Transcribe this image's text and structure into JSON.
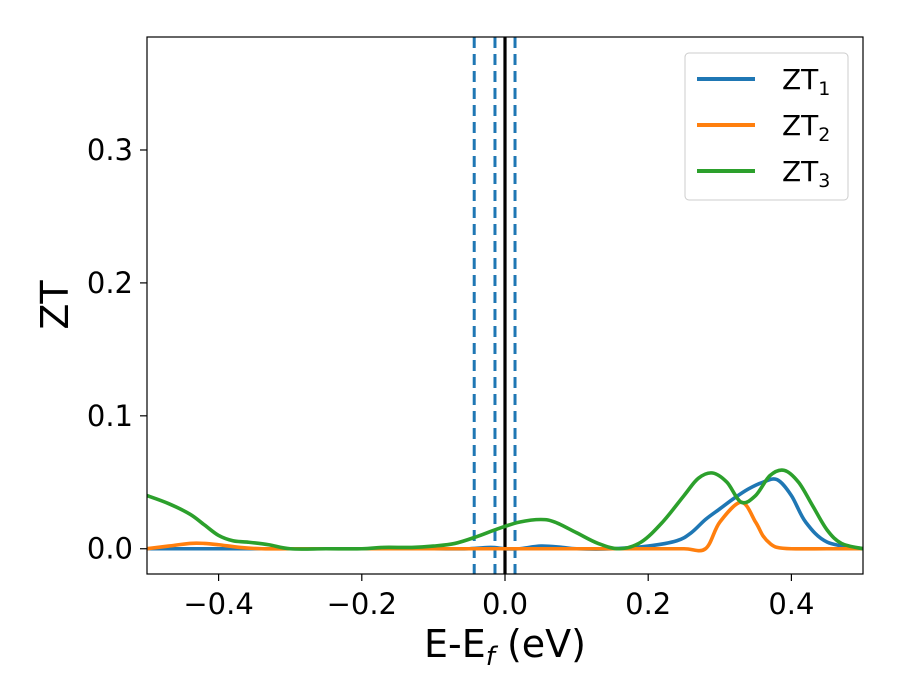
{
  "chart_data": {
    "type": "line",
    "xlabel": "E-E",
    "xlabel_sub": "f",
    "xlabel_unit": " (eV)",
    "ylabel": "ZT",
    "xlim": [
      -0.5,
      0.5
    ],
    "ylim": [
      -0.019,
      0.385
    ],
    "xticks": [
      -0.4,
      -0.2,
      0.0,
      0.2,
      0.4
    ],
    "xtick_labels": [
      "−0.4",
      "−0.2",
      "0.0",
      "0.2",
      "0.4"
    ],
    "yticks": [
      0.0,
      0.1,
      0.2,
      0.3
    ],
    "ytick_labels": [
      "0.0",
      "0.1",
      "0.2",
      "0.3"
    ],
    "grid": false,
    "legend_position": "top-right",
    "vlines": [
      {
        "x": -0.043,
        "style": "dashed",
        "color": "#1f77b4"
      },
      {
        "x": -0.014,
        "style": "dashed",
        "color": "#1f77b4"
      },
      {
        "x": 0.0,
        "style": "solid",
        "color": "#000000"
      },
      {
        "x": 0.014,
        "style": "dashed",
        "color": "#1f77b4"
      }
    ],
    "series": [
      {
        "name": "ZT",
        "name_sub": "1",
        "color": "#1f77b4",
        "x": [
          -0.5,
          -0.45,
          -0.4,
          -0.35,
          -0.3,
          -0.25,
          -0.2,
          -0.15,
          -0.1,
          -0.05,
          -0.02,
          0.0,
          0.02,
          0.05,
          0.08,
          0.1,
          0.15,
          0.2,
          0.24,
          0.26,
          0.28,
          0.3,
          0.32,
          0.34,
          0.36,
          0.38,
          0.4,
          0.42,
          0.45,
          0.5
        ],
        "y": [
          0.0,
          0.0,
          0.0,
          0.0,
          0.0,
          0.0,
          0.0,
          0.0,
          0.0,
          0.0,
          0.001,
          0.0,
          0.0,
          0.002,
          0.001,
          0.0,
          0.0,
          0.002,
          0.006,
          0.012,
          0.022,
          0.03,
          0.038,
          0.045,
          0.05,
          0.052,
          0.04,
          0.02,
          0.005,
          0.0
        ]
      },
      {
        "name": "ZT",
        "name_sub": "2",
        "color": "#ff7f0e",
        "x": [
          -0.5,
          -0.47,
          -0.44,
          -0.42,
          -0.4,
          -0.37,
          -0.34,
          -0.3,
          -0.25,
          -0.2,
          -0.15,
          -0.1,
          -0.05,
          0.0,
          0.1,
          0.2,
          0.25,
          0.28,
          0.3,
          0.33,
          0.35,
          0.36,
          0.37,
          0.38,
          0.4,
          0.45,
          0.5
        ],
        "y": [
          0.0,
          0.002,
          0.004,
          0.004,
          0.003,
          0.001,
          0.0,
          0.0,
          0.0,
          0.0,
          0.0,
          0.0,
          0.0,
          0.0,
          0.0,
          0.0,
          0.0,
          0.0,
          0.02,
          0.035,
          0.02,
          0.01,
          0.004,
          0.001,
          0.0,
          0.0,
          0.0
        ]
      },
      {
        "name": "ZT",
        "name_sub": "3",
        "color": "#2ca02c",
        "x": [
          -0.5,
          -0.47,
          -0.44,
          -0.42,
          -0.4,
          -0.38,
          -0.36,
          -0.33,
          -0.3,
          -0.25,
          -0.2,
          -0.17,
          -0.13,
          -0.1,
          -0.07,
          -0.04,
          -0.01,
          0.02,
          0.05,
          0.07,
          0.1,
          0.13,
          0.16,
          0.19,
          0.22,
          0.25,
          0.27,
          0.29,
          0.31,
          0.33,
          0.35,
          0.37,
          0.39,
          0.41,
          0.43,
          0.45,
          0.47,
          0.5
        ],
        "y": [
          0.04,
          0.034,
          0.026,
          0.018,
          0.01,
          0.006,
          0.005,
          0.003,
          0.0,
          0.0,
          0.0,
          0.001,
          0.001,
          0.002,
          0.004,
          0.009,
          0.015,
          0.02,
          0.022,
          0.02,
          0.012,
          0.004,
          0.0,
          0.005,
          0.02,
          0.04,
          0.053,
          0.057,
          0.05,
          0.035,
          0.04,
          0.055,
          0.059,
          0.05,
          0.032,
          0.014,
          0.004,
          0.0
        ]
      }
    ]
  }
}
